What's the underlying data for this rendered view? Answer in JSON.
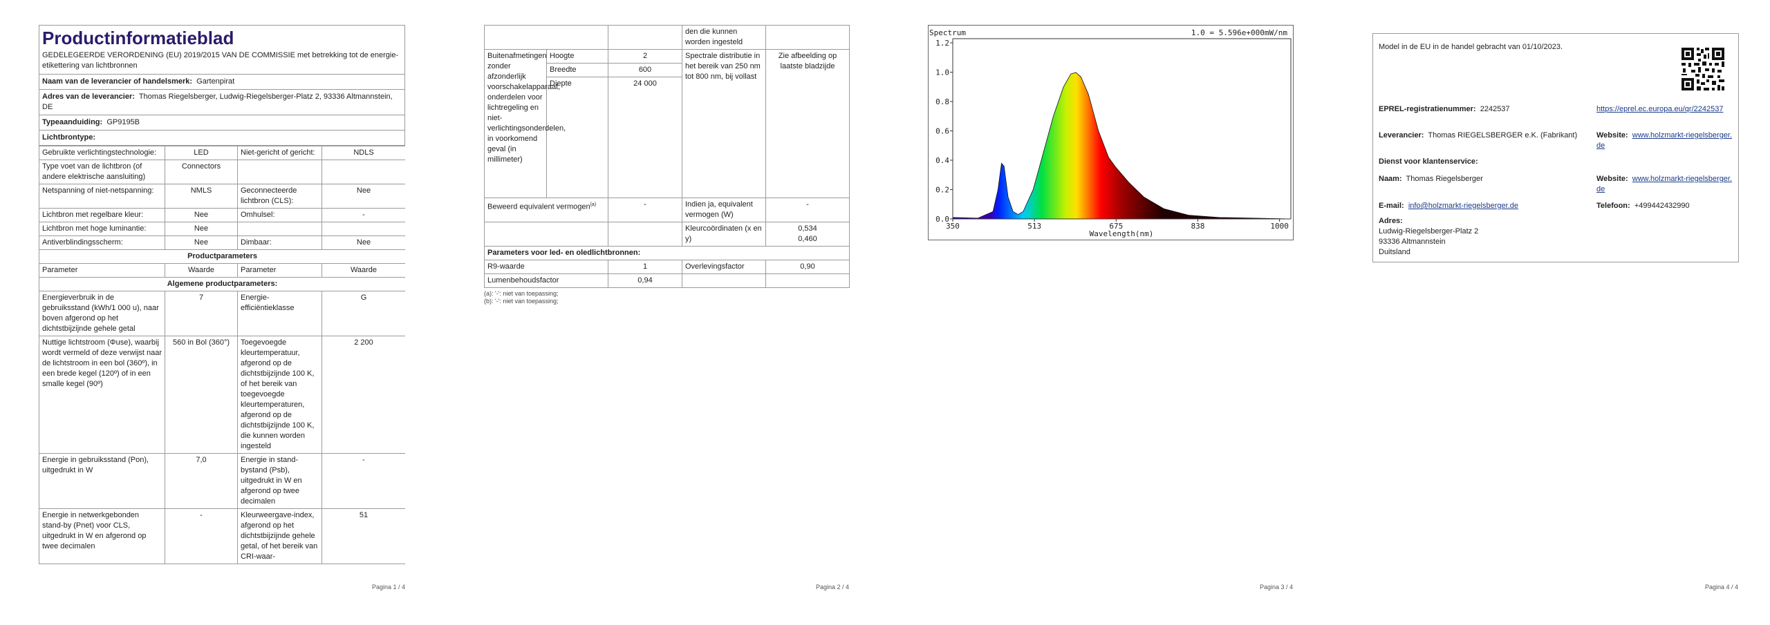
{
  "pages": [
    {
      "title": "Productinformatieblad",
      "subtitle": "GEDELEGEERDE VERORDENING (EU) 2019/2015 VAN DE COMMISSIE met betrekking tot de energie-etikettering van lichtbronnen",
      "supplier_rows": [
        {
          "label": "Naam van de leverancier of handelsmerk:",
          "value": "Gartenpirat"
        },
        {
          "label": "Adres van de leverancier:",
          "value": "Thomas Riegelsberger, Ludwig-Riegelsberger-Platz 2, 93336 Altmannstein, DE"
        },
        {
          "label": "Typeaanduiding:",
          "value": "GP9195B"
        },
        {
          "label": "Lichtbrontype:"
        }
      ],
      "rows": [
        [
          "Gebruikte verlichtingstechnologie:",
          "LED",
          "Niet-gericht of gericht:",
          "NDLS"
        ],
        [
          "Type voet van de lichtbron (of andere elektrische aansluiting)",
          "Connectors",
          null,
          null
        ],
        [
          "Netspanning of niet-netspanning:",
          "NMLS",
          "Geconnecteerde lichtbron (CLS):",
          "Nee"
        ],
        [
          "Lichtbron met regelbare kleur:",
          "Nee",
          "Omhulsel:",
          "-"
        ],
        [
          "Lichtbron met hoge luminantie:",
          "Nee",
          null,
          null
        ],
        [
          "Antiverblindingsscherm:",
          "Nee",
          "Dimbaar:",
          "Nee"
        ],
        [
          "Productparameters"
        ],
        [
          "Parameter",
          "Waarde",
          "Parameter",
          "Waarde"
        ],
        [
          "Algemene productparameters:"
        ],
        [
          "Energieverbruik in de gebruiksstand (kWh/1 000 u), naar boven afgerond op het dichtstbijzijnde gehele getal",
          "7",
          "Energie-efficiëntieklasse",
          "G"
        ],
        [
          "Nuttige lichtstroom (Φuse), waarbij wordt vermeld of deze verwijst naar de lichtstroom in een bol (360º), in een brede kegel (120º) of in een smalle kegel (90º)",
          "560 in Bol (360°)",
          "Toegevoegde kleurtemperatuur, afgerond op de dichtstbijzijnde 100 K, of het bereik van toegevoegde kleurtemperaturen, afgerond op de dichtstbijzijnde 100 K, die kunnen worden ingesteld",
          "2 200"
        ],
        [
          "Energie in gebruiksstand (Pon), uitgedrukt in W",
          "7,0",
          "Energie in stand-bystand (Psb), uitgedrukt in W en afgerond op twee decimalen",
          "-"
        ],
        [
          "Energie in netwerkgebonden stand-by (Pnet) voor CLS, uitgedrukt in W en afgerond op twee decimalen",
          "-",
          "Kleurweergave-index, afgerond op het dichtstbijzijnde gehele getal, of het bereik van CRI-waar-",
          "51"
        ]
      ],
      "page_number": "Pagina 1 / 4"
    },
    {
      "continuation": "den die kunnen worden ingesteld",
      "dimensions": {
        "label": "Buitenafmetingen zonder afzonderlijk voorschakelapparaat, onderdelen voor lichtregeling en niet-verlichtingsonderdelen, in voorkomend geval (in millimeter)",
        "parts": [
          {
            "name": "Hoogte",
            "value": "2"
          },
          {
            "name": "Breedte",
            "value": "600"
          },
          {
            "name": "Diepte",
            "value": "24 000"
          }
        ]
      },
      "spectral": {
        "label": "Spectrale distributie in het bereik van 250 nm tot 800 nm, bij vollast",
        "value": "Zie afbeelding op laatste bladzijde"
      },
      "equivalent": {
        "label": "Beweerd equivalent vermogen",
        "note": "(a)",
        "value": "-",
        "if_label": "Indien ja, equivalent vermogen (W)",
        "if_value": "-"
      },
      "coordinates": {
        "label": "Kleurcoördinaten (x en y)",
        "values": [
          "0,534",
          "0,460"
        ]
      },
      "section": "Parameters voor led- en oledlichtbronnen:",
      "rows": [
        [
          "R9-waarde",
          "1",
          "Overlevingsfactor",
          "0,90"
        ],
        [
          "Lumenbehoudsfactor",
          "0,94",
          null,
          null
        ]
      ],
      "footnotes": [
        "(a): '-': niet van toepassing;",
        "(b): '-': niet van toepassing;"
      ],
      "page_number": "Pagina 2 / 4"
    },
    {
      "figure": {
        "title": "Spectrum",
        "scale_note": "1.0 = 5.596e+000mW/nm",
        "x_label": "Wavelength(nm)",
        "xticks": [
          "350",
          "513",
          "675",
          "838",
          "1000"
        ],
        "yticks": [
          "0.0",
          "0.2",
          "0.4",
          "0.6",
          "0.8",
          "1.0",
          "1.2"
        ]
      },
      "page_number": "Pagina 3 / 4"
    },
    {
      "intro": "Model in de EU in de handel gebracht van 01/10/2023.",
      "eprel": {
        "label": "EPREL-registratienummer:",
        "value": "2242537",
        "link": "https://eprel.ec.europa.eu/qr/2242537"
      },
      "supplier": {
        "label": "Leverancier:",
        "value": "Thomas RIEGELSBERGER e.K. (Fabrikant)",
        "website_label": "Website:",
        "website": "www.holzmarkt-riegelsberger.de"
      },
      "service": {
        "heading": "Dienst voor klantenservice:",
        "name_label": "Naam:",
        "name": "Thomas Riegelsberger",
        "website_label": "Website:",
        "website": "www.holzmarkt-riegelsberger.de",
        "email_label": "E-mail:",
        "email": "info@holzmarkt-riegelsberger.de",
        "phone_label": "Telefoon:",
        "phone": "+499442432990",
        "address_label": "Adres:",
        "address": [
          "Ludwig-Riegelsberger-Platz 2",
          "93336 Altmannstein",
          "Duitsland"
        ]
      },
      "page_number": "Pagina 4 / 4"
    }
  ]
}
